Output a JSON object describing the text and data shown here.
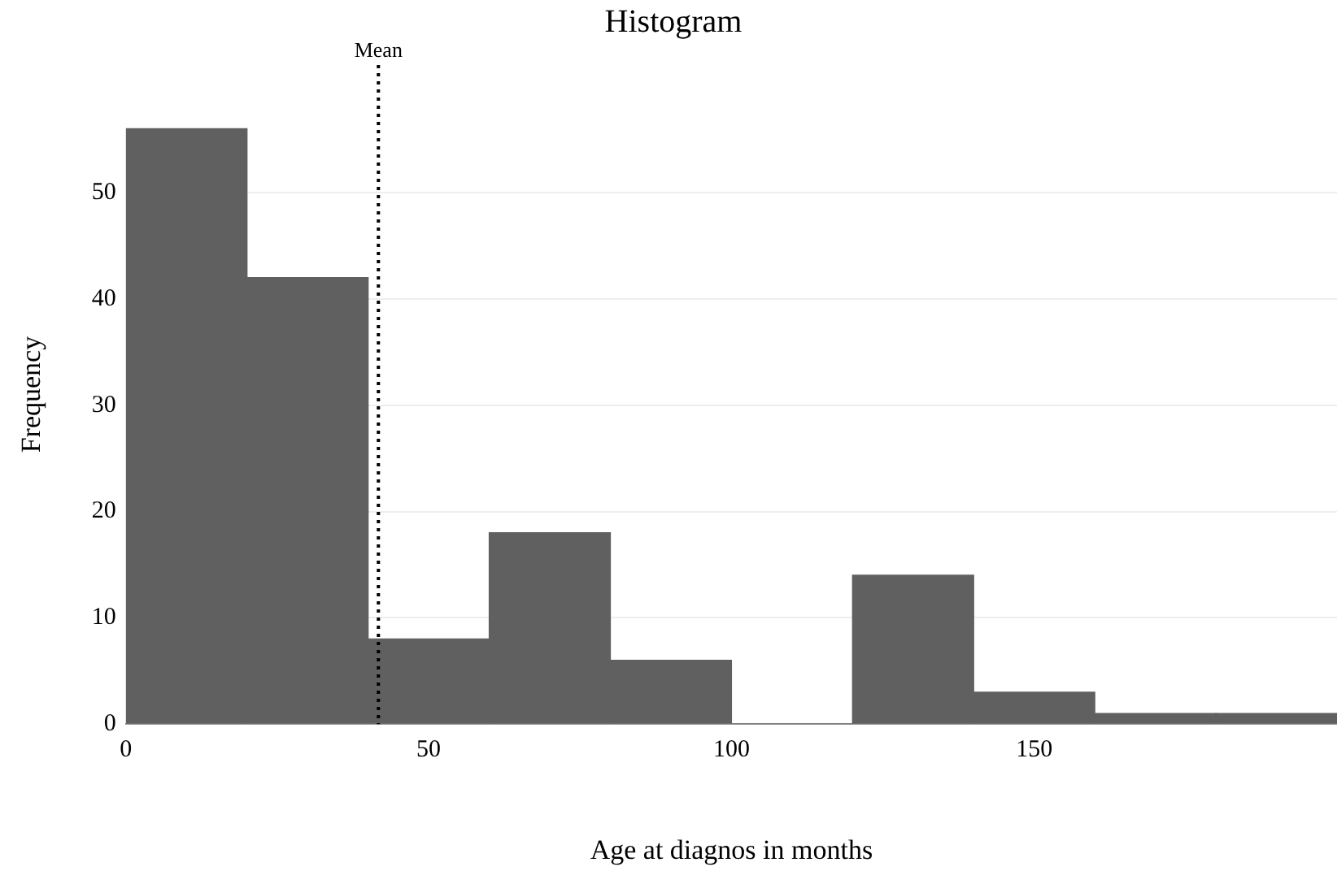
{
  "chart_data": {
    "type": "histogram",
    "title": "Histogram",
    "xlabel": "Age at diagnos in months",
    "ylabel": "Frequency",
    "bins": [
      0,
      20,
      40,
      60,
      80,
      100,
      120,
      140,
      160,
      180,
      200
    ],
    "values": [
      56,
      42,
      8,
      18,
      6,
      0,
      14,
      3,
      1,
      1
    ],
    "color": "#606060",
    "xlim": [
      0,
      200
    ],
    "xticks": [
      0,
      50,
      100,
      150
    ],
    "ylim": [
      0,
      62
    ],
    "yticks": [
      0,
      10,
      20,
      30,
      40,
      50
    ],
    "grid": "y",
    "legend": false,
    "ref_lines": [
      {
        "axis": "x",
        "value": 41.7,
        "label": "Mean",
        "line_style": "dotted",
        "color": "#000000"
      }
    ]
  }
}
